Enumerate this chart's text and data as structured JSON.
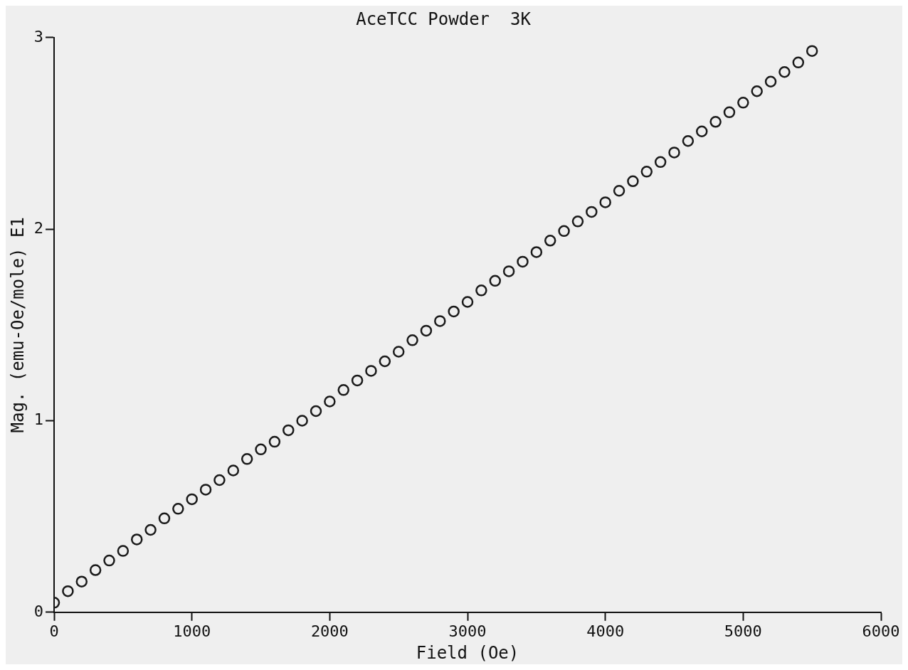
{
  "chart_data": {
    "type": "scatter",
    "title": "AceTCC Powder  3K",
    "xlabel": "Field (Oe)",
    "ylabel": "Mag. (emu-Oe/mole) E1",
    "x": [
      0,
      100,
      200,
      300,
      400,
      500,
      600,
      700,
      800,
      900,
      1000,
      1100,
      1200,
      1300,
      1400,
      1500,
      1600,
      1700,
      1800,
      1900,
      2000,
      2100,
      2200,
      2300,
      2400,
      2500,
      2600,
      2700,
      2800,
      2900,
      3000,
      3100,
      3200,
      3300,
      3400,
      3500,
      3600,
      3700,
      3800,
      3900,
      4000,
      4100,
      4200,
      4300,
      4400,
      4500,
      4600,
      4700,
      4800,
      4900,
      5000,
      5100,
      5200,
      5300,
      5400,
      5500
    ],
    "values": [
      0.05,
      0.11,
      0.16,
      0.22,
      0.27,
      0.32,
      0.38,
      0.43,
      0.49,
      0.54,
      0.59,
      0.64,
      0.69,
      0.74,
      0.8,
      0.85,
      0.89,
      0.95,
      1.0,
      1.05,
      1.1,
      1.16,
      1.21,
      1.26,
      1.31,
      1.36,
      1.42,
      1.47,
      1.52,
      1.57,
      1.62,
      1.68,
      1.73,
      1.78,
      1.83,
      1.88,
      1.94,
      1.99,
      2.04,
      2.09,
      2.14,
      2.2,
      2.25,
      2.3,
      2.35,
      2.4,
      2.46,
      2.51,
      2.56,
      2.61,
      2.66,
      2.72,
      2.77,
      2.82,
      2.87,
      2.93
    ],
    "color": "#1a1a1a",
    "marker": "circle",
    "xlim": [
      0,
      6000
    ],
    "xticks": [
      0,
      1000,
      2000,
      3000,
      4000,
      5000,
      6000
    ],
    "ylim": [
      0,
      3
    ],
    "yticks": [
      0,
      1,
      2,
      3
    ]
  }
}
